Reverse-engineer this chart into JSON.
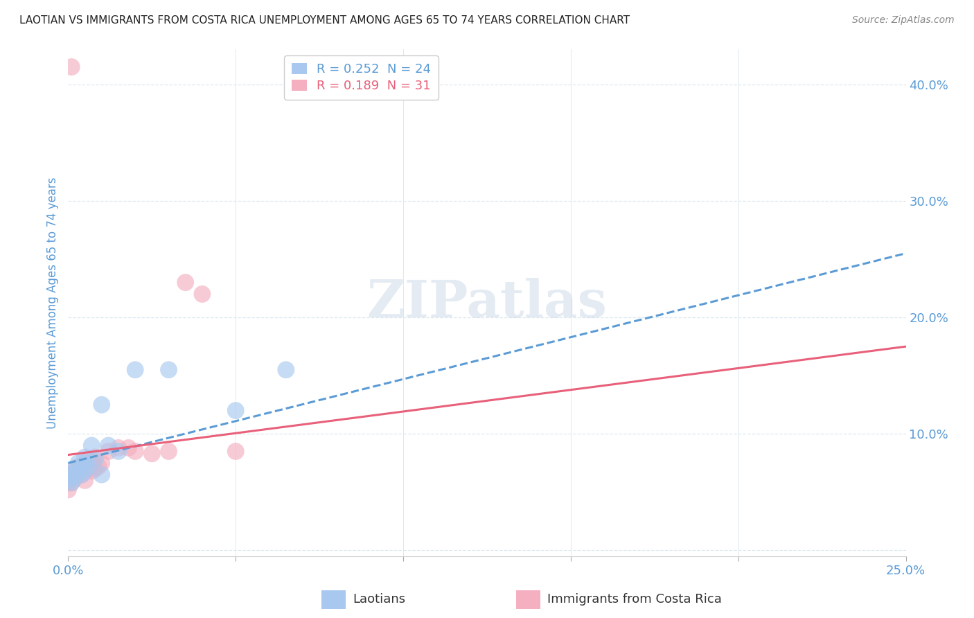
{
  "title": "LAOTIAN VS IMMIGRANTS FROM COSTA RICA UNEMPLOYMENT AMONG AGES 65 TO 74 YEARS CORRELATION CHART",
  "source": "Source: ZipAtlas.com",
  "ylabel": "Unemployment Among Ages 65 to 74 years",
  "xlim": [
    0,
    0.25
  ],
  "ylim": [
    -0.005,
    0.43
  ],
  "xticks": [
    0.0,
    0.05,
    0.1,
    0.15,
    0.2,
    0.25
  ],
  "yticks": [
    0.0,
    0.1,
    0.2,
    0.3,
    0.4
  ],
  "ytick_labels": [
    "",
    "10.0%",
    "20.0%",
    "30.0%",
    "40.0%"
  ],
  "xtick_labels": [
    "0.0%",
    "",
    "",
    "",
    "",
    "25.0%"
  ],
  "watermark": "ZIPatlas",
  "blue_R": 0.252,
  "blue_N": 24,
  "pink_R": 0.189,
  "pink_N": 31,
  "blue_color": "#a8c8ef",
  "pink_color": "#f4afc0",
  "blue_line_color": "#5b9bd5",
  "pink_line_color": "#e8607a",
  "legend_label_blue": "Laotians",
  "legend_label_pink": "Immigrants from Costa Rica",
  "blue_scatter_x": [
    0.0,
    0.0,
    0.001,
    0.001,
    0.002,
    0.002,
    0.003,
    0.003,
    0.004,
    0.004,
    0.005,
    0.005,
    0.005,
    0.006,
    0.007,
    0.008,
    0.01,
    0.01,
    0.012,
    0.015,
    0.02,
    0.03,
    0.05,
    0.065
  ],
  "blue_scatter_y": [
    0.06,
    0.065,
    0.058,
    0.065,
    0.062,
    0.07,
    0.068,
    0.075,
    0.065,
    0.072,
    0.068,
    0.075,
    0.08,
    0.072,
    0.09,
    0.078,
    0.065,
    0.125,
    0.09,
    0.085,
    0.155,
    0.155,
    0.12,
    0.155
  ],
  "pink_scatter_x": [
    0.0,
    0.0,
    0.0,
    0.001,
    0.001,
    0.002,
    0.002,
    0.003,
    0.003,
    0.004,
    0.004,
    0.005,
    0.005,
    0.006,
    0.006,
    0.007,
    0.007,
    0.008,
    0.008,
    0.009,
    0.01,
    0.012,
    0.015,
    0.018,
    0.02,
    0.025,
    0.03,
    0.035,
    0.04,
    0.05,
    0.001
  ],
  "pink_scatter_y": [
    0.052,
    0.058,
    0.065,
    0.058,
    0.065,
    0.062,
    0.07,
    0.065,
    0.072,
    0.065,
    0.072,
    0.06,
    0.068,
    0.07,
    0.078,
    0.068,
    0.075,
    0.07,
    0.08,
    0.072,
    0.075,
    0.085,
    0.088,
    0.088,
    0.085,
    0.083,
    0.085,
    0.23,
    0.22,
    0.085,
    0.415
  ],
  "blue_trend_x": [
    0.0,
    0.25
  ],
  "blue_trend_y": [
    0.075,
    0.255
  ],
  "pink_trend_x": [
    0.0,
    0.25
  ],
  "pink_trend_y": [
    0.082,
    0.175
  ],
  "background_color": "#ffffff",
  "grid_color": "#dde8f0",
  "title_color": "#222222",
  "axis_label_color": "#5b9bd5",
  "tick_color": "#5b9bd5"
}
